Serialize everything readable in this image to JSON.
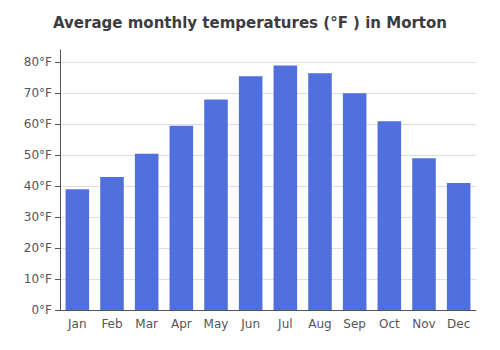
{
  "chart_data": {
    "type": "bar",
    "title": "Average monthly temperatures (°F ) in Morton",
    "categories": [
      "Jan",
      "Feb",
      "Mar",
      "Apr",
      "May",
      "Jun",
      "Jul",
      "Aug",
      "Sep",
      "Oct",
      "Nov",
      "Dec"
    ],
    "values": [
      39,
      43,
      50.5,
      59.5,
      68,
      75.5,
      79,
      76.5,
      70,
      61,
      49,
      41
    ],
    "ylim": [
      0,
      84
    ],
    "yticks": [
      {
        "value": 0,
        "label": "0°F"
      },
      {
        "value": 10,
        "label": "10°F"
      },
      {
        "value": 20,
        "label": "20°F"
      },
      {
        "value": 30,
        "label": "30°F"
      },
      {
        "value": 40,
        "label": "40°F"
      },
      {
        "value": 50,
        "label": "50°F"
      },
      {
        "value": 60,
        "label": "60°F"
      },
      {
        "value": 70,
        "label": "70°F"
      },
      {
        "value": 80,
        "label": "80°F"
      }
    ],
    "grid": true
  }
}
